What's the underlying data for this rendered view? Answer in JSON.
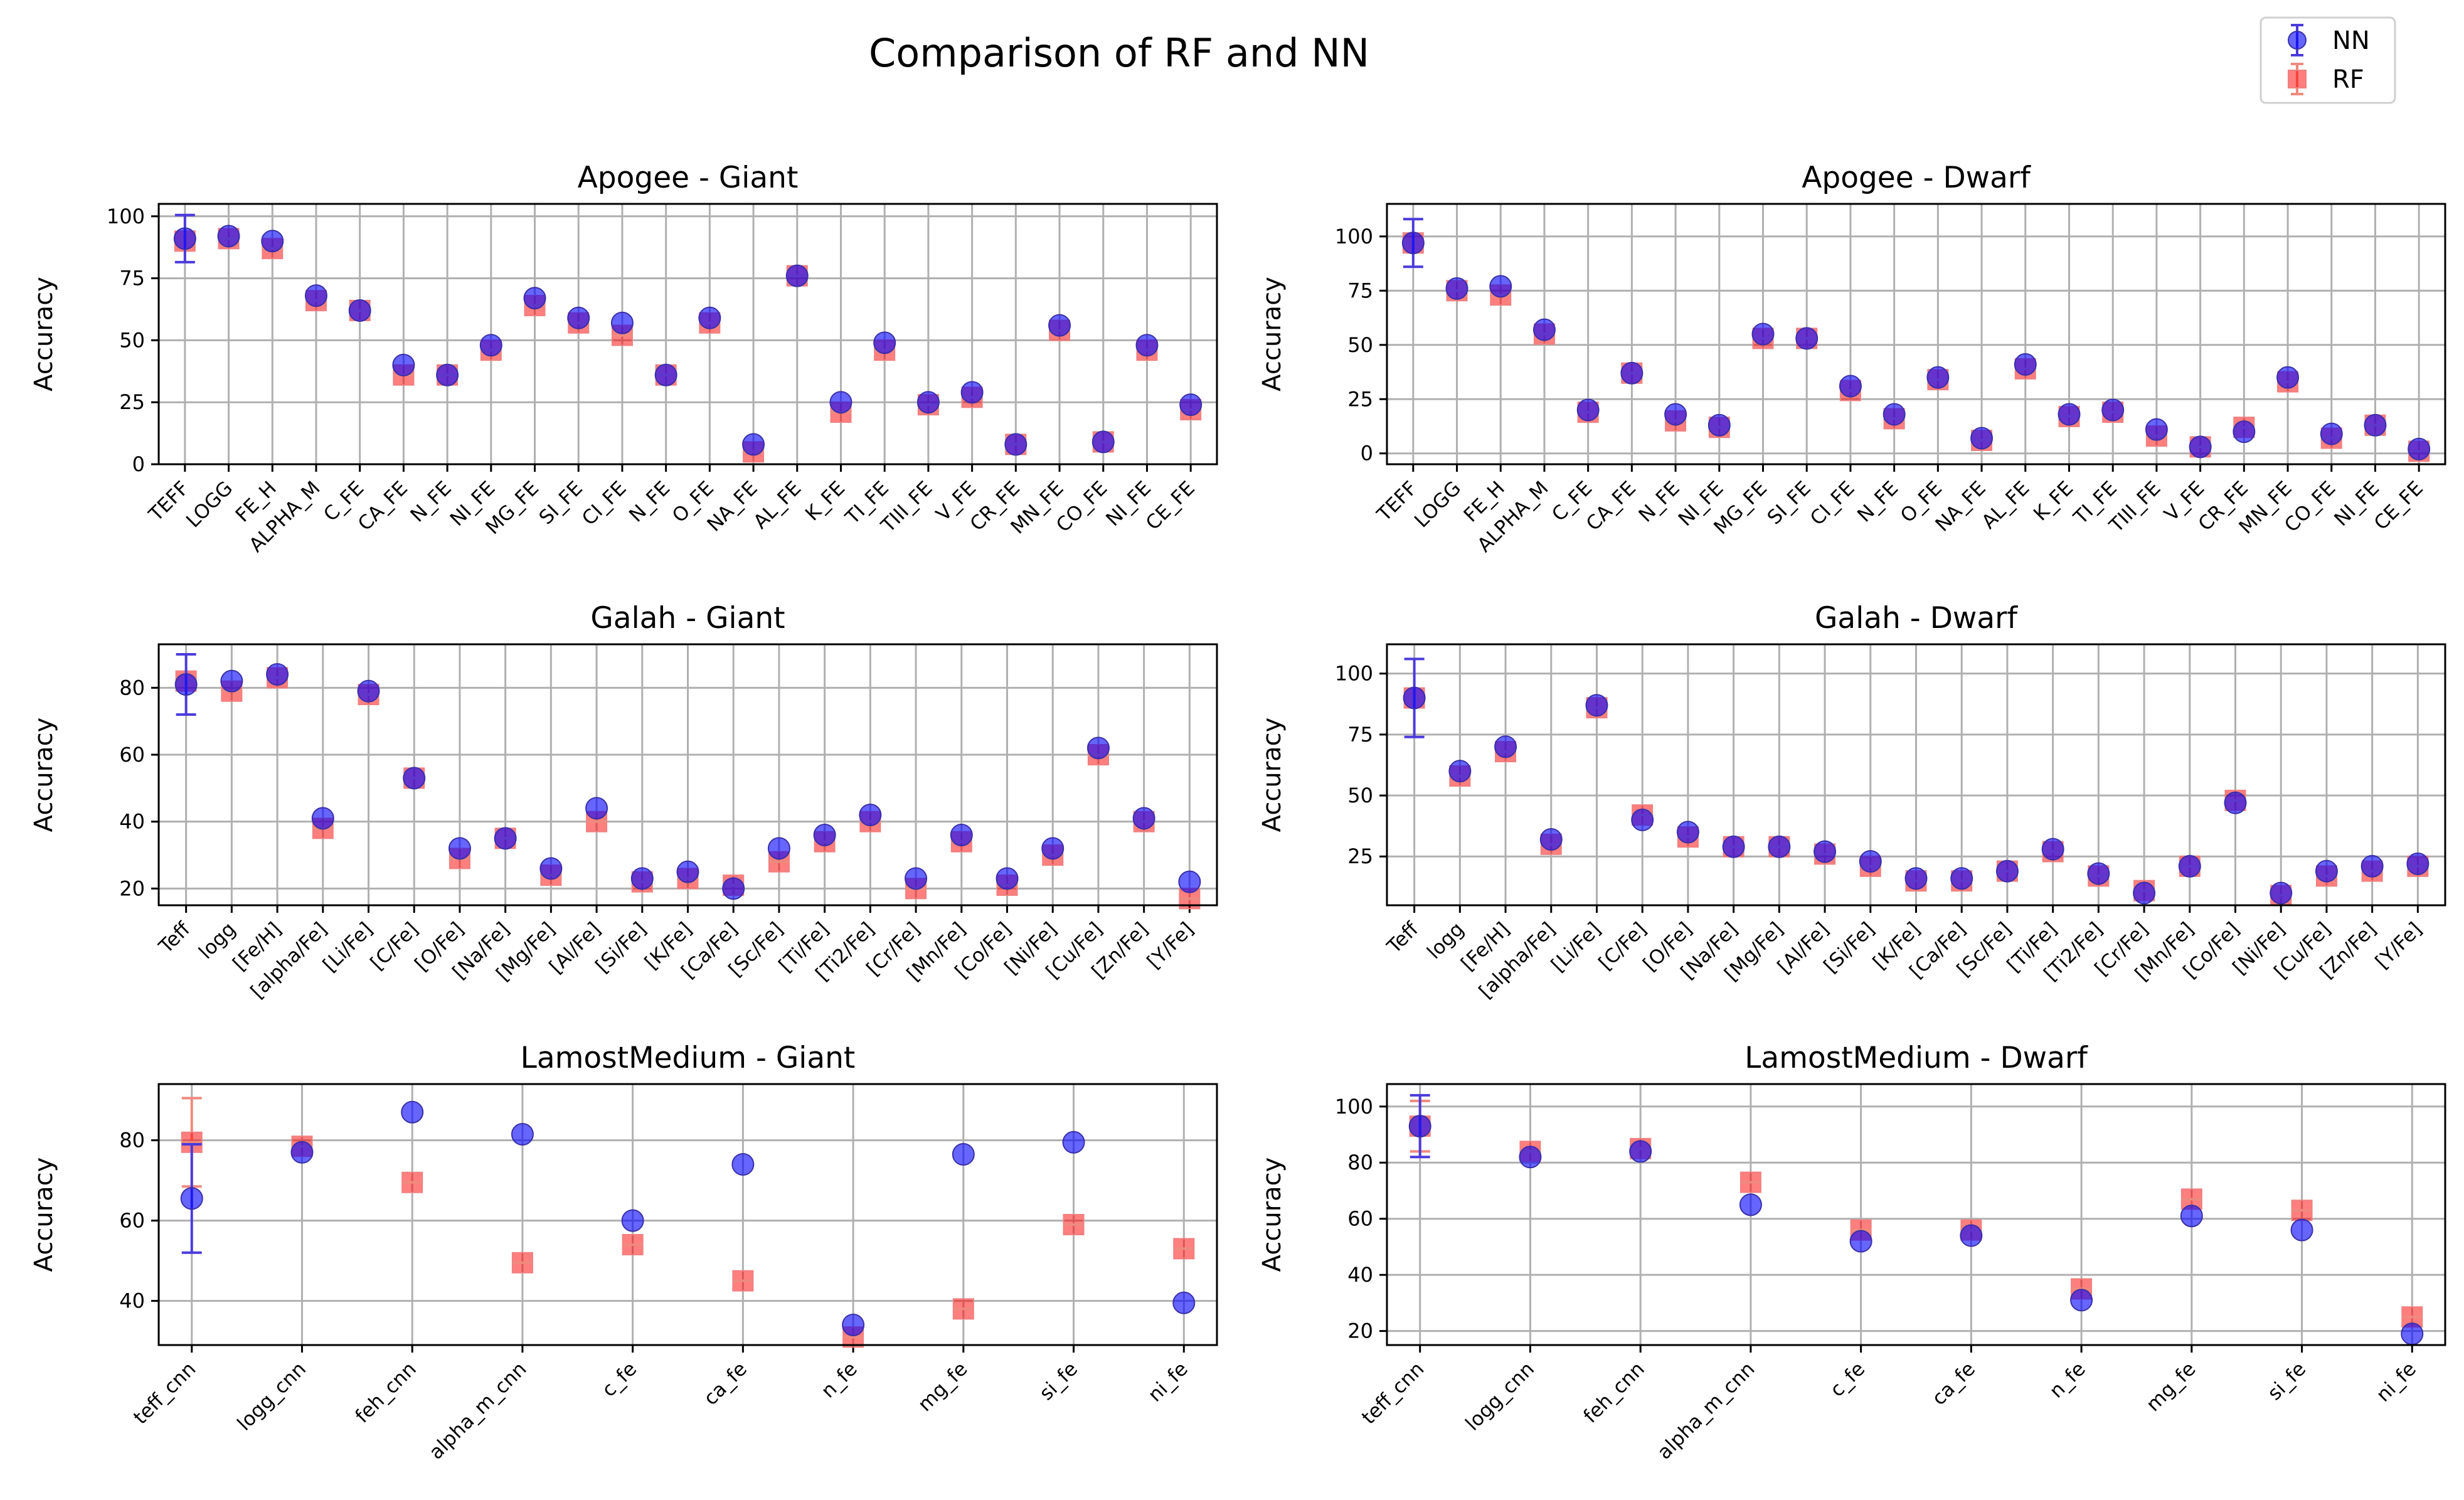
{
  "figure": {
    "title": "Comparison of RF and NN",
    "legend": {
      "placement": "top-right",
      "entries": [
        "NN",
        "RF"
      ]
    },
    "colors": {
      "nn": "#0000ff",
      "rf": "#ff0000",
      "grid": "#b0b0b0"
    }
  },
  "chart_data": [
    {
      "type": "scatter",
      "title": "Apogee - Giant",
      "ylabel": "Accuracy",
      "ylim": [
        0,
        105
      ],
      "yticks": [
        0,
        25,
        50,
        75,
        100
      ],
      "grid": true,
      "categories": [
        "TEFF",
        "LOGG",
        "FE_H",
        "ALPHA_M",
        "C_FE",
        "CA_FE",
        "N_FE",
        "NI_FE",
        "MG_FE",
        "SI_FE",
        "CI_FE",
        "N_FE",
        "O_FE",
        "NA_FE",
        "AL_FE",
        "K_FE",
        "TI_FE",
        "TIII_FE",
        "V_FE",
        "CR_FE",
        "MN_FE",
        "CO_FE",
        "NI_FE",
        "CE_FE"
      ],
      "series": [
        {
          "name": "NN",
          "values": [
            91,
            92,
            90,
            68,
            62,
            40,
            36,
            48,
            67,
            59,
            57,
            36,
            59,
            8,
            76,
            25,
            49,
            25,
            29,
            8,
            56,
            9,
            48,
            24
          ],
          "errors": [
            {
              "index": 0,
              "err": 9.5
            }
          ]
        },
        {
          "name": "RF",
          "values": [
            90,
            91,
            87,
            66,
            62,
            36,
            36,
            46,
            64,
            57,
            52,
            36,
            57,
            5,
            76,
            21,
            46,
            24,
            27,
            8,
            54,
            9,
            46,
            22
          ]
        }
      ]
    },
    {
      "type": "scatter",
      "title": "Apogee - Dwarf",
      "ylabel": "Accuracy",
      "ylim": [
        -5,
        115
      ],
      "yticks": [
        0,
        25,
        50,
        75,
        100
      ],
      "grid": true,
      "categories": [
        "TEFF",
        "LOGG",
        "FE_H",
        "ALPHA_M",
        "C_FE",
        "CA_FE",
        "N_FE",
        "NI_FE",
        "MG_FE",
        "SI_FE",
        "CI_FE",
        "N_FE",
        "O_FE",
        "NA_FE",
        "AL_FE",
        "K_FE",
        "TI_FE",
        "TIII_FE",
        "V_FE",
        "CR_FE",
        "MN_FE",
        "CO_FE",
        "NI_FE",
        "CE_FE"
      ],
      "series": [
        {
          "name": "NN",
          "values": [
            97,
            76,
            77,
            57,
            20,
            37,
            18,
            13,
            55,
            53,
            31,
            18,
            35,
            7,
            41,
            18,
            20,
            11,
            3,
            10,
            35,
            9,
            13,
            2
          ],
          "errors": [
            {
              "index": 0,
              "err": 11
            }
          ]
        },
        {
          "name": "RF",
          "values": [
            97,
            75,
            73,
            55,
            19,
            37,
            15,
            12,
            53,
            53,
            29,
            16,
            34,
            6,
            39,
            17,
            19,
            8,
            3,
            12,
            33,
            7,
            13,
            1
          ]
        }
      ]
    },
    {
      "type": "scatter",
      "title": "Galah - Giant",
      "ylabel": "Accuracy",
      "ylim": [
        15,
        93
      ],
      "yticks": [
        20,
        40,
        60,
        80
      ],
      "grid": true,
      "categories": [
        "Teff",
        "logg",
        "[Fe/H]",
        "[alpha/Fe]",
        "[Li/Fe]",
        "[C/Fe]",
        "[O/Fe]",
        "[Na/Fe]",
        "[Mg/Fe]",
        "[Al/Fe]",
        "[Si/Fe]",
        "[K/Fe]",
        "[Ca/Fe]",
        "[Sc/Fe]",
        "[Ti/Fe]",
        "[Ti2/Fe]",
        "[Cr/Fe]",
        "[Mn/Fe]",
        "[Co/Fe]",
        "[Ni/Fe]",
        "[Cu/Fe]",
        "[Zn/Fe]",
        "[Y/Fe]"
      ],
      "series": [
        {
          "name": "NN",
          "values": [
            81,
            82,
            84,
            41,
            79,
            53,
            32,
            35,
            26,
            44,
            23,
            25,
            20,
            32,
            36,
            42,
            23,
            36,
            23,
            32,
            62,
            41,
            22
          ],
          "errors": [
            {
              "index": 0,
              "err": 9
            }
          ]
        },
        {
          "name": "RF",
          "values": [
            82,
            79,
            83,
            38,
            78,
            53,
            29,
            35,
            24,
            40,
            22,
            23,
            21,
            28,
            34,
            40,
            20,
            34,
            21,
            30,
            60,
            40,
            17
          ]
        }
      ]
    },
    {
      "type": "scatter",
      "title": "Galah - Dwarf",
      "ylabel": "Accuracy",
      "ylim": [
        5,
        112
      ],
      "yticks": [
        25,
        50,
        75,
        100
      ],
      "grid": true,
      "categories": [
        "Teff",
        "logg",
        "[Fe/H]",
        "[alpha/Fe]",
        "[Li/Fe]",
        "[C/Fe]",
        "[O/Fe]",
        "[Na/Fe]",
        "[Mg/Fe]",
        "[Al/Fe]",
        "[Si/Fe]",
        "[K/Fe]",
        "[Ca/Fe]",
        "[Sc/Fe]",
        "[Ti/Fe]",
        "[Ti2/Fe]",
        "[Cr/Fe]",
        "[Mn/Fe]",
        "[Co/Fe]",
        "[Ni/Fe]",
        "[Cu/Fe]",
        "[Zn/Fe]",
        "[Y/Fe]"
      ],
      "series": [
        {
          "name": "NN",
          "values": [
            90,
            60,
            70,
            32,
            87,
            40,
            35,
            29,
            29,
            27,
            23,
            16,
            16,
            19,
            28,
            18,
            10,
            21,
            47,
            10,
            19,
            21,
            22
          ],
          "errors": [
            {
              "index": 0,
              "err": 16
            }
          ]
        },
        {
          "name": "RF",
          "values": [
            90,
            58,
            68,
            30,
            86,
            42,
            33,
            29,
            29,
            26,
            21,
            15,
            15,
            19,
            27,
            17,
            11,
            21,
            48,
            9,
            17,
            19,
            21
          ]
        }
      ]
    },
    {
      "type": "scatter",
      "title": "LamostMedium - Giant",
      "ylabel": "Accuracy",
      "ylim": [
        29,
        94
      ],
      "yticks": [
        40,
        60,
        80
      ],
      "grid": true,
      "categories": [
        "teff_cnn",
        "logg_cnn",
        "feh_cnn",
        "alpha_m_cnn",
        "c_fe",
        "ca_fe",
        "n_fe",
        "mg_fe",
        "si_fe",
        "ni_fe"
      ],
      "series": [
        {
          "name": "NN",
          "values": [
            65.5,
            77,
            87,
            81.5,
            60,
            74,
            34,
            76.5,
            79.5,
            39.5
          ],
          "errors": [
            {
              "index": 0,
              "err": 13.5
            }
          ]
        },
        {
          "name": "RF",
          "values": [
            79.5,
            78.5,
            69.5,
            49.5,
            54,
            45,
            31,
            38,
            59,
            53
          ],
          "errors": [
            {
              "index": 0,
              "err": 11
            }
          ]
        }
      ]
    },
    {
      "type": "scatter",
      "title": "LamostMedium - Dwarf",
      "ylabel": "Accuracy",
      "ylim": [
        15,
        108
      ],
      "yticks": [
        20,
        40,
        60,
        80,
        100
      ],
      "grid": true,
      "categories": [
        "teff_cnn",
        "logg_cnn",
        "feh_cnn",
        "alpha_m_cnn",
        "c_fe",
        "ca_fe",
        "n_fe",
        "mg_fe",
        "si_fe",
        "ni_fe"
      ],
      "series": [
        {
          "name": "NN",
          "values": [
            93,
            82,
            84,
            65,
            52,
            54,
            31,
            61,
            56,
            19
          ],
          "errors": [
            {
              "index": 0,
              "err": 11
            }
          ]
        },
        {
          "name": "RF",
          "values": [
            93,
            84,
            85,
            73,
            56,
            56,
            35,
            67,
            63,
            25
          ],
          "errors": [
            {
              "index": 0,
              "err": 9
            }
          ]
        }
      ]
    }
  ]
}
